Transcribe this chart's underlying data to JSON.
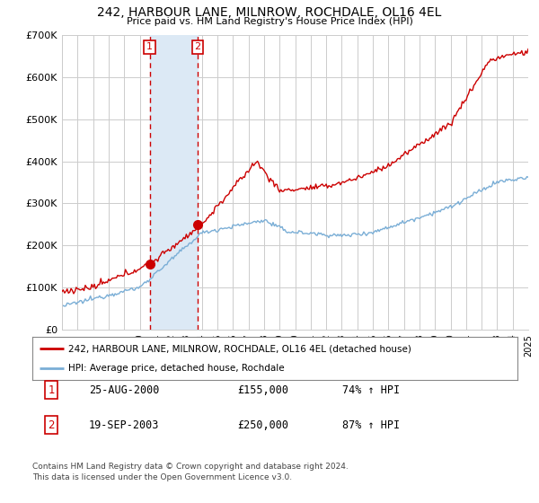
{
  "title": "242, HARBOUR LANE, MILNROW, ROCHDALE, OL16 4EL",
  "subtitle": "Price paid vs. HM Land Registry's House Price Index (HPI)",
  "ylim": [
    0,
    700000
  ],
  "yticks": [
    0,
    100000,
    200000,
    300000,
    400000,
    500000,
    600000,
    700000
  ],
  "ytick_labels": [
    "£0",
    "£100K",
    "£200K",
    "£300K",
    "£400K",
    "£500K",
    "£600K",
    "£700K"
  ],
  "sale1_date_x": 2000.65,
  "sale1_price": 155000,
  "sale1_label": "25-AUG-2000",
  "sale1_amount": "£155,000",
  "sale1_pct": "74% ↑ HPI",
  "sale2_date_x": 2003.72,
  "sale2_price": 250000,
  "sale2_label": "19-SEP-2003",
  "sale2_amount": "£250,000",
  "sale2_pct": "87% ↑ HPI",
  "legend_line1": "242, HARBOUR LANE, MILNROW, ROCHDALE, OL16 4EL (detached house)",
  "legend_line2": "HPI: Average price, detached house, Rochdale",
  "footnote1": "Contains HM Land Registry data © Crown copyright and database right 2024.",
  "footnote2": "This data is licensed under the Open Government Licence v3.0.",
  "hpi_color": "#7aaed6",
  "price_color": "#cc0000",
  "shade_color": "#dce9f5",
  "marker_color": "#cc0000",
  "grid_color": "#cccccc",
  "bg_color": "#ffffff",
  "xlim_left": 1995,
  "xlim_right": 2025
}
